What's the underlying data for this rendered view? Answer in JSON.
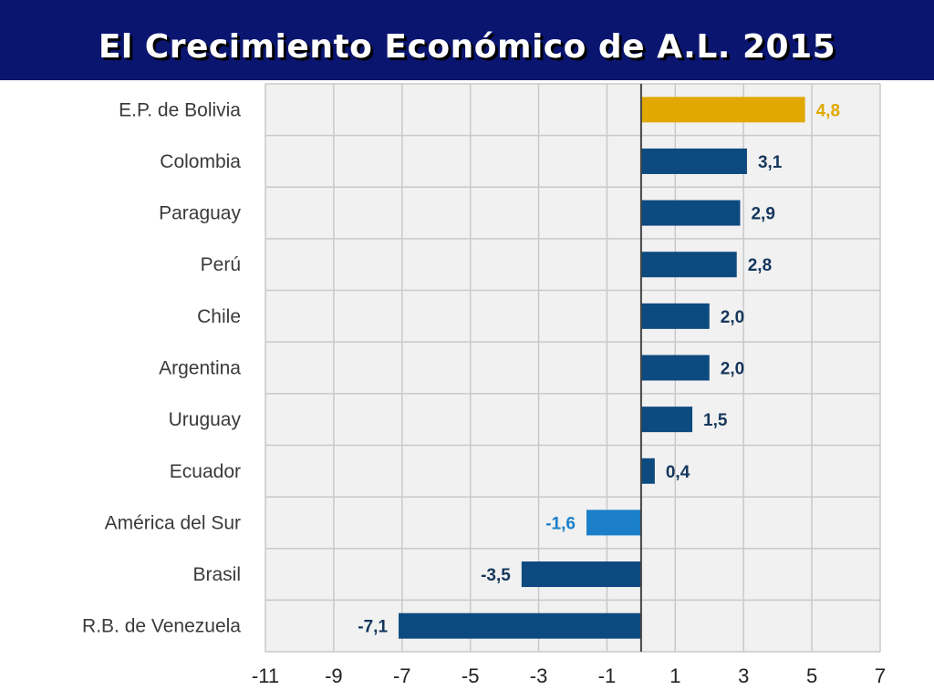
{
  "header": {
    "title": "El Crecimiento Económico de A.L. 2015"
  },
  "colors": {
    "header_bg": "#0a1570",
    "plot_bg": "#f1f1f1",
    "gridline": "#c9c9c9",
    "bar_default": "#0d4a80",
    "bar_highlight": "#e0a800",
    "bar_region": "#1a7fc8",
    "value_text": "#15365c",
    "value_text_highlight": "#e0a800"
  },
  "chart_data": {
    "type": "bar",
    "orientation": "horizontal",
    "title": "El Crecimiento Económico de A.L. 2015",
    "xlabel": "",
    "ylabel": "",
    "xlim": [
      -11,
      7
    ],
    "xticks": [
      -11,
      -9,
      -7,
      -5,
      -3,
      -1,
      1,
      3,
      5,
      7
    ],
    "xtick_labels": [
      "-11",
      "-9",
      "-7",
      "-5",
      "-3",
      "-1",
      "1",
      "3",
      "5",
      "7"
    ],
    "grid": true,
    "categories": [
      "E.P. de Bolivia",
      "Colombia",
      "Paraguay",
      "Perú",
      "Chile",
      "Argentina",
      "Uruguay",
      "Ecuador",
      "América del Sur",
      "Brasil",
      "R.B. de Venezuela"
    ],
    "values": [
      4.8,
      3.1,
      2.9,
      2.8,
      2.0,
      2.0,
      1.5,
      0.4,
      -1.6,
      -3.5,
      -7.1
    ],
    "value_labels": [
      "4,8",
      "3,1",
      "2,9",
      "2,8",
      "2,0",
      "2,0",
      "1,5",
      "0,4",
      "-1,6",
      "-3,5",
      "-7,1"
    ],
    "highlight": [
      "E.P. de Bolivia"
    ],
    "region": [
      "América del Sur"
    ]
  }
}
